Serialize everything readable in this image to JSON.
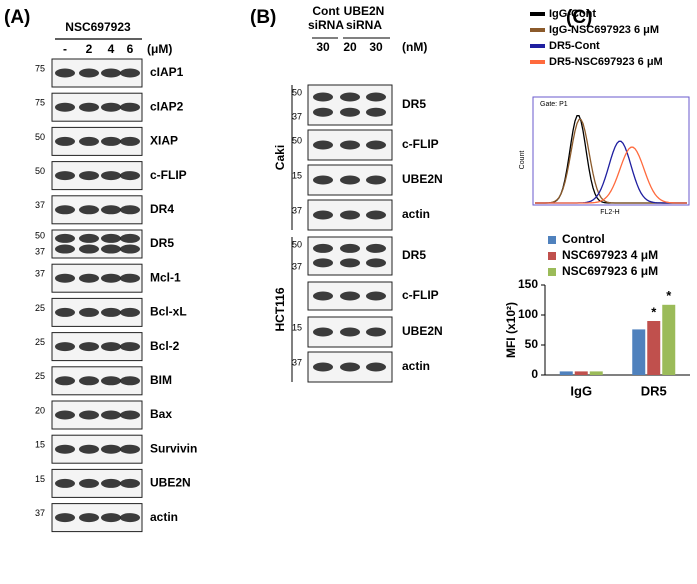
{
  "panel_a": {
    "label": "(A)",
    "compound": "NSC697923",
    "doses": [
      "-",
      "2",
      "4",
      "6"
    ],
    "unit": "(μM)",
    "blots": [
      {
        "name": "cIAP1",
        "markers": [
          "75"
        ]
      },
      {
        "name": "cIAP2",
        "markers": [
          "75"
        ]
      },
      {
        "name": "XIAP",
        "markers": [
          "50"
        ]
      },
      {
        "name": "c-FLIP",
        "markers": [
          "50"
        ]
      },
      {
        "name": "DR4",
        "markers": [
          "37"
        ]
      },
      {
        "name": "DR5",
        "markers": [
          "50",
          "37"
        ]
      },
      {
        "name": "Mcl-1",
        "markers": [
          "37"
        ]
      },
      {
        "name": "Bcl-xL",
        "markers": [
          "25"
        ]
      },
      {
        "name": "Bcl-2",
        "markers": [
          "25"
        ]
      },
      {
        "name": "BIM",
        "markers": [
          "25"
        ]
      },
      {
        "name": "Bax",
        "markers": [
          "20"
        ]
      },
      {
        "name": "Survivin",
        "markers": [
          "15"
        ]
      },
      {
        "name": "UBE2N",
        "markers": [
          "15"
        ]
      },
      {
        "name": "actin",
        "markers": [
          "37"
        ]
      }
    ]
  },
  "panel_b": {
    "label": "(B)",
    "groups": [
      [
        "Cont",
        "siRNA"
      ],
      [
        "UBE2N",
        "siRNA"
      ]
    ],
    "doses": [
      "30",
      "20",
      "30"
    ],
    "unit": "(nM)",
    "cell_lines": [
      {
        "name": "Caki",
        "blots": [
          {
            "name": "DR5",
            "markers": [
              "50",
              "37"
            ]
          },
          {
            "name": "c-FLIP",
            "markers": [
              "50"
            ]
          },
          {
            "name": "UBE2N",
            "markers": [
              "15"
            ]
          },
          {
            "name": "actin",
            "markers": [
              "37"
            ]
          }
        ]
      },
      {
        "name": "HCT116",
        "blots": [
          {
            "name": "DR5",
            "markers": [
              "50",
              "37"
            ]
          },
          {
            "name": "c-FLIP",
            "markers": []
          },
          {
            "name": "UBE2N",
            "markers": [
              "15"
            ]
          },
          {
            "name": "actin",
            "markers": [
              "37"
            ]
          }
        ]
      }
    ]
  },
  "panel_c": {
    "label": "(C)",
    "flow_legend": [
      {
        "name": "IgG-Cont",
        "color": "#000000"
      },
      {
        "name": "IgG-NSC697923 6 μM",
        "color": "#8b5a2b"
      },
      {
        "name": "DR5-Cont",
        "color": "#1f1fa0"
      },
      {
        "name": "DR5-NSC697923 6 μM",
        "color": "#ff6a3d"
      }
    ],
    "gate": "Gate: P1",
    "y_label": "Count",
    "x_label": "FL2-H"
  },
  "chart_data": {
    "type": "bar",
    "y_label": "MFI (x10²)",
    "categories": [
      "IgG",
      "DR5"
    ],
    "series": [
      {
        "name": "Control",
        "color": "#4f81bd",
        "values": [
          6,
          76
        ]
      },
      {
        "name": "NSC697923 4 μM",
        "color": "#c0504d",
        "values": [
          6,
          90
        ]
      },
      {
        "name": "NSC697923 6 μM",
        "color": "#9bbb59",
        "values": [
          6,
          117
        ]
      }
    ],
    "annotations": [
      {
        "text": "*",
        "series": 1,
        "category": 1
      },
      {
        "text": "*",
        "series": 2,
        "category": 1
      }
    ],
    "ylim": [
      0,
      150
    ],
    "yticks": [
      0,
      50,
      100,
      150
    ]
  }
}
